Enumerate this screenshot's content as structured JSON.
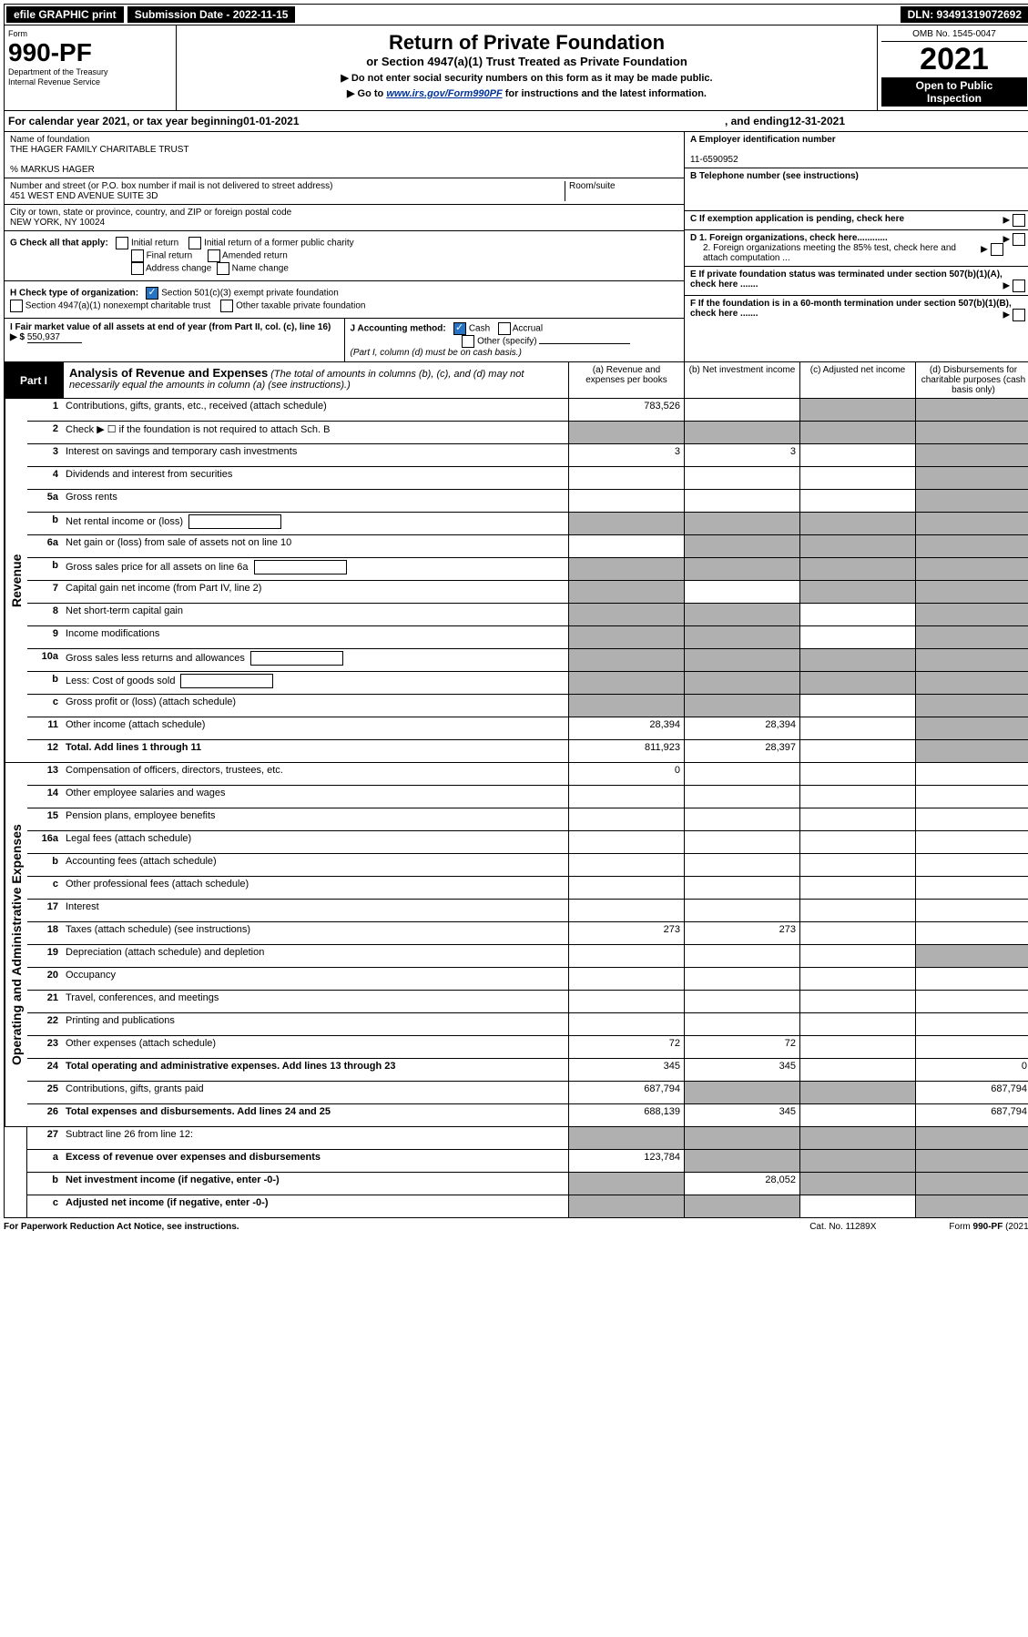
{
  "topbar": {
    "efile_btn": "efile GRAPHIC print",
    "submission_label": "Submission Date - 2022-11-15",
    "dln": "DLN: 93491319072692"
  },
  "header": {
    "form_word": "Form",
    "form_no": "990-PF",
    "dept1": "Department of the Treasury",
    "dept2": "Internal Revenue Service",
    "title": "Return of Private Foundation",
    "subtitle": "or Section 4947(a)(1) Trust Treated as Private Foundation",
    "ptr1": "▶ Do not enter social security numbers on this form as it may be made public.",
    "ptr2_a": "▶ Go to ",
    "ptr2_link": "www.irs.gov/Form990PF",
    "ptr2_b": " for instructions and the latest information.",
    "omb": "OMB No. 1545-0047",
    "year": "2021",
    "open1": "Open to Public",
    "open2": "Inspection"
  },
  "caly": {
    "prefix": "For calendar year 2021, or tax year beginning ",
    "begin": "01-01-2021",
    "mid": ", and ending ",
    "end": "12-31-2021"
  },
  "entity": {
    "name_label": "Name of foundation",
    "name": "THE HAGER FAMILY CHARITABLE TRUST",
    "care_of": "% MARKUS HAGER",
    "addr_label": "Number and street (or P.O. box number if mail is not delivered to street address)",
    "room_label": "Room/suite",
    "addr": "451 WEST END AVENUE SUITE 3D",
    "city_label": "City or town, state or province, country, and ZIP or foreign postal code",
    "city": "NEW YORK, NY  10024"
  },
  "right": {
    "a": "A Employer identification number",
    "ein": "11-6590952",
    "b": "B Telephone number (see instructions)",
    "c": "C If exemption application is pending, check here",
    "d1": "D 1. Foreign organizations, check here............",
    "d2": "2. Foreign organizations meeting the 85% test, check here and attach computation ...",
    "e": "E  If private foundation status was terminated under section 507(b)(1)(A), check here .......",
    "f": "F  If the foundation is in a 60-month termination under section 507(b)(1)(B), check here ......."
  },
  "g": {
    "label": "G Check all that apply:",
    "opts": [
      "Initial return",
      "Final return",
      "Address change",
      "Initial return of a former public charity",
      "Amended return",
      "Name change"
    ]
  },
  "h": {
    "label": "H Check type of organization:",
    "o1": "Section 501(c)(3) exempt private foundation",
    "o2": "Section 4947(a)(1) nonexempt charitable trust",
    "o3": "Other taxable private foundation"
  },
  "i": {
    "label": "I Fair market value of all assets at end of year (from Part II, col. (c), line 16)",
    "arrow": "▶ $",
    "value": "550,937"
  },
  "j": {
    "label": "J Accounting method:",
    "cash": "Cash",
    "accrual": "Accrual",
    "other": "Other (specify)",
    "note": "(Part I, column (d) must be on cash basis.)"
  },
  "part1": {
    "label": "Part I",
    "title": "Analysis of Revenue and Expenses",
    "title_note": "(The total of amounts in columns (b), (c), and (d) may not necessarily equal the amounts in column (a) (see instructions).)",
    "cols": {
      "a": "(a)  Revenue and expenses per books",
      "b": "(b)  Net investment income",
      "c": "(c)  Adjusted net income",
      "d": "(d)  Disbursements for charitable purposes (cash basis only)"
    }
  },
  "sections": {
    "revenue": "Revenue",
    "opex": "Operating and Administrative Expenses"
  },
  "lines": {
    "1": {
      "no": "1",
      "desc": "Contributions, gifts, grants, etc., received (attach schedule)",
      "a": "783,526",
      "b": "",
      "c": "",
      "d": "",
      "shade_cd": true
    },
    "2": {
      "no": "2",
      "desc": "Check ▶ ☐ if the foundation is not required to attach Sch. B",
      "shade_all": true
    },
    "3": {
      "no": "3",
      "desc": "Interest on savings and temporary cash investments",
      "a": "3",
      "b": "3",
      "c": "",
      "d": "",
      "shade_d": true
    },
    "4": {
      "no": "4",
      "desc": "Dividends and interest from securities",
      "shade_d": true
    },
    "5a": {
      "no": "5a",
      "desc": "Gross rents",
      "shade_d": true
    },
    "5b": {
      "no": "b",
      "desc": "Net rental income or (loss)",
      "shade_abcd": true,
      "inline_box": true
    },
    "6a": {
      "no": "6a",
      "desc": "Net gain or (loss) from sale of assets not on line 10",
      "shade_bcd": true
    },
    "6b": {
      "no": "b",
      "desc": "Gross sales price for all assets on line 6a",
      "shade_abcd": true,
      "inline_box": true
    },
    "7": {
      "no": "7",
      "desc": "Capital gain net income (from Part IV, line 2)",
      "shade_a": true,
      "shade_cd": true
    },
    "8": {
      "no": "8",
      "desc": "Net short-term capital gain",
      "shade_ab": true,
      "shade_d": true
    },
    "9": {
      "no": "9",
      "desc": "Income modifications",
      "shade_ab": true,
      "shade_d": true
    },
    "10a": {
      "no": "10a",
      "desc": "Gross sales less returns and allowances",
      "shade_abcd": true,
      "inline_box": true
    },
    "10b": {
      "no": "b",
      "desc": "Less: Cost of goods sold",
      "shade_abcd": true,
      "inline_box": true
    },
    "10c": {
      "no": "c",
      "desc": "Gross profit or (loss) (attach schedule)",
      "shade_ab": true,
      "shade_d": true
    },
    "11": {
      "no": "11",
      "desc": "Other income (attach schedule)",
      "a": "28,394",
      "b": "28,394",
      "shade_d": true
    },
    "12": {
      "no": "12",
      "desc": "Total. Add lines 1 through 11",
      "a": "811,923",
      "b": "28,397",
      "bold": true,
      "shade_d": true
    },
    "13": {
      "no": "13",
      "desc": "Compensation of officers, directors, trustees, etc.",
      "a": "0"
    },
    "14": {
      "no": "14",
      "desc": "Other employee salaries and wages"
    },
    "15": {
      "no": "15",
      "desc": "Pension plans, employee benefits"
    },
    "16a": {
      "no": "16a",
      "desc": "Legal fees (attach schedule)"
    },
    "16b": {
      "no": "b",
      "desc": "Accounting fees (attach schedule)"
    },
    "16c": {
      "no": "c",
      "desc": "Other professional fees (attach schedule)"
    },
    "17": {
      "no": "17",
      "desc": "Interest"
    },
    "18": {
      "no": "18",
      "desc": "Taxes (attach schedule) (see instructions)",
      "a": "273",
      "b": "273"
    },
    "19": {
      "no": "19",
      "desc": "Depreciation (attach schedule) and depletion",
      "shade_d": true
    },
    "20": {
      "no": "20",
      "desc": "Occupancy"
    },
    "21": {
      "no": "21",
      "desc": "Travel, conferences, and meetings"
    },
    "22": {
      "no": "22",
      "desc": "Printing and publications"
    },
    "23": {
      "no": "23",
      "desc": "Other expenses (attach schedule)",
      "a": "72",
      "b": "72"
    },
    "24": {
      "no": "24",
      "desc": "Total operating and administrative expenses. Add lines 13 through 23",
      "a": "345",
      "b": "345",
      "d": "0",
      "bold": true
    },
    "25": {
      "no": "25",
      "desc": "Contributions, gifts, grants paid",
      "a": "687,794",
      "d": "687,794",
      "shade_bc": true
    },
    "26": {
      "no": "26",
      "desc": "Total expenses and disbursements. Add lines 24 and 25",
      "a": "688,139",
      "b": "345",
      "d": "687,794",
      "bold": true
    },
    "27": {
      "no": "27",
      "desc": "Subtract line 26 from line 12:",
      "shade_abcd": true
    },
    "27a": {
      "no": "a",
      "desc": "Excess of revenue over expenses and disbursements",
      "a": "123,784",
      "bold": true,
      "shade_bcd": true
    },
    "27b": {
      "no": "b",
      "desc": "Net investment income (if negative, enter -0-)",
      "b": "28,052",
      "bold": true,
      "shade_a": true,
      "shade_cd": true
    },
    "27c": {
      "no": "c",
      "desc": "Adjusted net income (if negative, enter -0-)",
      "bold": true,
      "shade_ab": true,
      "shade_d": true
    }
  },
  "footer": {
    "pra": "For Paperwork Reduction Act Notice, see instructions.",
    "cat": "Cat. No. 11289X",
    "form": "Form 990-PF (2021)"
  },
  "colors": {
    "shade": "#b0b0b0",
    "link": "#003399",
    "check": "#2773c4"
  }
}
